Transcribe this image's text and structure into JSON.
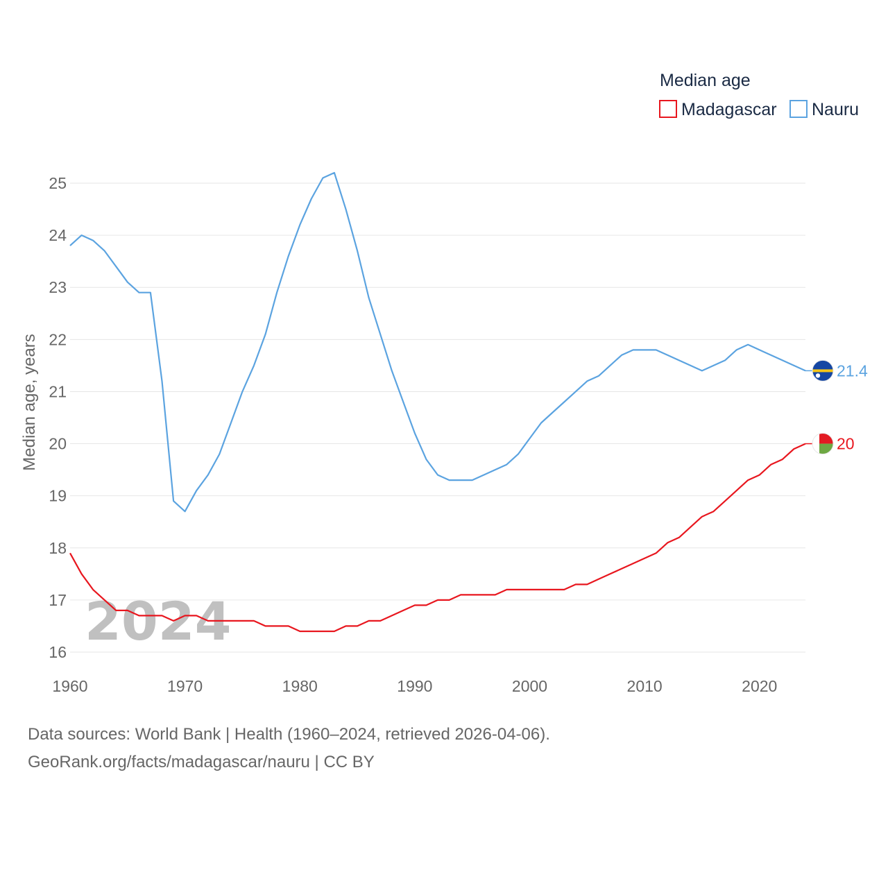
{
  "chart_data": {
    "type": "line",
    "legend_title": "Median age",
    "ylabel": "Median age, years",
    "xlabel": "",
    "xlim": [
      1960,
      2024
    ],
    "ylim": [
      16,
      25
    ],
    "x_ticks": [
      1960,
      1970,
      1980,
      1990,
      2000,
      2010,
      2020
    ],
    "y_ticks": [
      16,
      17,
      18,
      19,
      20,
      21,
      22,
      23,
      24,
      25
    ],
    "grid": true,
    "legend_position": "top-right",
    "year_label": "2024",
    "series": [
      {
        "name": "Madagascar",
        "color": "#e8161e",
        "end_label": "20",
        "flag_icon": "madagascar-flag-icon",
        "x_start": 1960,
        "values": [
          17.9,
          17.5,
          17.2,
          17.0,
          16.8,
          16.8,
          16.7,
          16.7,
          16.7,
          16.6,
          16.7,
          16.7,
          16.6,
          16.6,
          16.6,
          16.6,
          16.6,
          16.5,
          16.5,
          16.5,
          16.4,
          16.4,
          16.4,
          16.4,
          16.5,
          16.5,
          16.6,
          16.6,
          16.7,
          16.8,
          16.9,
          16.9,
          17.0,
          17.0,
          17.1,
          17.1,
          17.1,
          17.1,
          17.2,
          17.2,
          17.2,
          17.2,
          17.2,
          17.2,
          17.3,
          17.3,
          17.4,
          17.5,
          17.6,
          17.7,
          17.8,
          17.9,
          18.1,
          18.2,
          18.4,
          18.6,
          18.7,
          18.9,
          19.1,
          19.3,
          19.4,
          19.6,
          19.7,
          19.9,
          20.0
        ]
      },
      {
        "name": "Nauru",
        "color": "#5ba3e0",
        "end_label": "21.4",
        "flag_icon": "nauru-flag-icon",
        "x_start": 1960,
        "values": [
          23.8,
          24.0,
          23.9,
          23.7,
          23.4,
          23.1,
          22.9,
          22.9,
          21.2,
          18.9,
          18.7,
          19.1,
          19.4,
          19.8,
          20.4,
          21.0,
          21.5,
          22.1,
          22.9,
          23.6,
          24.2,
          24.7,
          25.1,
          25.2,
          24.5,
          23.7,
          22.8,
          22.1,
          21.4,
          20.8,
          20.2,
          19.7,
          19.4,
          19.3,
          19.3,
          19.3,
          19.4,
          19.5,
          19.6,
          19.8,
          20.1,
          20.4,
          20.6,
          20.8,
          21.0,
          21.2,
          21.3,
          21.5,
          21.7,
          21.8,
          21.8,
          21.8,
          21.7,
          21.6,
          21.5,
          21.4,
          21.5,
          21.6,
          21.8,
          21.9,
          21.8,
          21.7,
          21.6,
          21.5,
          21.4
        ]
      }
    ]
  },
  "footer": {
    "line1": "Data sources: World Bank | Health (1960–2024, retrieved 2026-04-06).",
    "line2": "GeoRank.org/facts/madagascar/nauru | CC BY"
  }
}
